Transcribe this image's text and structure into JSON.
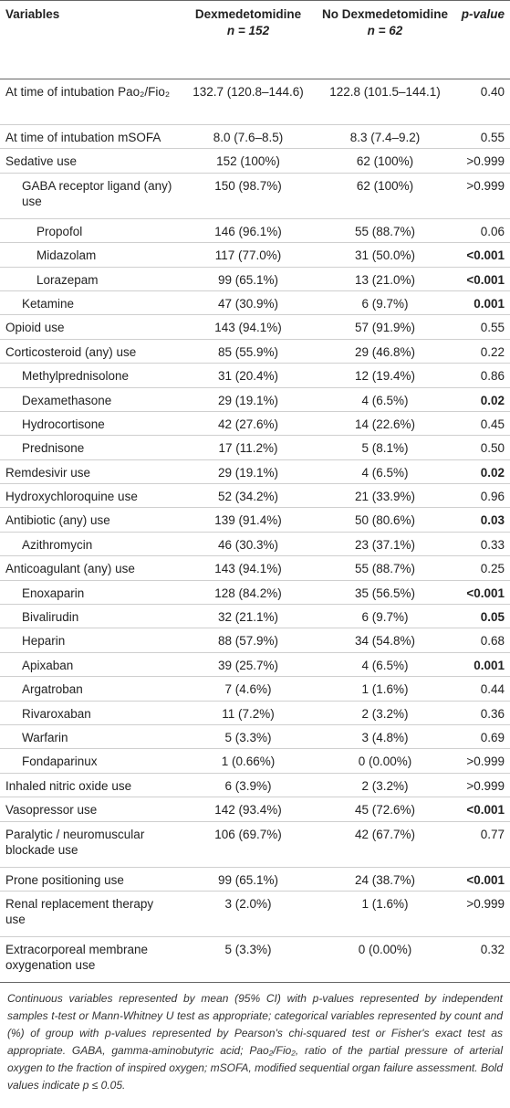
{
  "table": {
    "header": {
      "variables": "Variables",
      "groups": [
        {
          "name": "Dexmedetomidine",
          "n": "n = 152"
        },
        {
          "name": "No Dexmedetomidine",
          "n": "n = 62"
        }
      ],
      "p": "p-value"
    },
    "rows": [
      [
        "At time of intubation Pao₂/Fio₂",
        "132.7 (120.8–144.6)",
        "122.8 (101.5–144.1)",
        "0.40"
      ],
      [
        "At time of intubation mSOFA",
        "8.0 (7.6–8.5)",
        "8.3 (7.4–9.2)",
        "0.55"
      ],
      [
        "Sedative use",
        "152 (100%)",
        "62 (100%)",
        ">0.999"
      ],
      [
        "GABA receptor ligand (any) use",
        "150 (98.7%)",
        "62 (100%)",
        ">0.999"
      ],
      [
        "Propofol",
        "146 (96.1%)",
        "55 (88.7%)",
        "0.06"
      ],
      [
        "Midazolam",
        "117 (77.0%)",
        "31 (50.0%)",
        "<0.001"
      ],
      [
        "Lorazepam",
        "99 (65.1%)",
        "13 (21.0%)",
        "<0.001"
      ],
      [
        "Ketamine",
        "47 (30.9%)",
        "6 (9.7%)",
        "0.001"
      ],
      [
        "Opioid use",
        "143 (94.1%)",
        "57 (91.9%)",
        "0.55"
      ],
      [
        "Corticosteroid (any) use",
        "85 (55.9%)",
        "29 (46.8%)",
        "0.22"
      ],
      [
        "Methylprednisolone",
        "31 (20.4%)",
        "12 (19.4%)",
        "0.86"
      ],
      [
        "Dexamethasone",
        "29 (19.1%)",
        "4 (6.5%)",
        "0.02"
      ],
      [
        "Hydrocortisone",
        "42 (27.6%)",
        "14 (22.6%)",
        "0.45"
      ],
      [
        "Prednisone",
        "17 (11.2%)",
        "5 (8.1%)",
        "0.50"
      ],
      [
        "Remdesivir use",
        "29 (19.1%)",
        "4 (6.5%)",
        "0.02"
      ],
      [
        "Hydroxychloroquine use",
        "52 (34.2%)",
        "21 (33.9%)",
        "0.96"
      ],
      [
        "Antibiotic (any) use",
        "139 (91.4%)",
        "50 (80.6%)",
        "0.03"
      ],
      [
        "Azithromycin",
        "46 (30.3%)",
        "23 (37.1%)",
        "0.33"
      ],
      [
        "Anticoagulant (any) use",
        "143 (94.1%)",
        "55 (88.7%)",
        "0.25"
      ],
      [
        "Enoxaparin",
        "128 (84.2%)",
        "35 (56.5%)",
        "<0.001"
      ],
      [
        "Bivalirudin",
        "32 (21.1%)",
        "6 (9.7%)",
        "0.05"
      ],
      [
        "Heparin",
        "88 (57.9%)",
        "34 (54.8%)",
        "0.68"
      ],
      [
        "Apixaban",
        "39 (25.7%)",
        "4 (6.5%)",
        "0.001"
      ],
      [
        "Argatroban",
        "7 (4.6%)",
        "1 (1.6%)",
        "0.44"
      ],
      [
        "Rivaroxaban",
        "11 (7.2%)",
        "2 (3.2%)",
        "0.36"
      ],
      [
        "Warfarin",
        "5 (3.3%)",
        "3 (4.8%)",
        "0.69"
      ],
      [
        "Fondaparinux",
        "1 (0.66%)",
        "0 (0.00%)",
        ">0.999"
      ],
      [
        "Inhaled nitric oxide use",
        "6 (3.9%)",
        "2 (3.2%)",
        ">0.999"
      ],
      [
        "Vasopressor use",
        "142 (93.4%)",
        "45 (72.6%)",
        "<0.001"
      ],
      [
        "Paralytic / neuromuscular blockade use",
        "106 (69.7%)",
        "42 (67.7%)",
        "0.77"
      ],
      [
        "Prone positioning use",
        "99 (65.1%)",
        "24 (38.7%)",
        "<0.001"
      ],
      [
        "Renal replacement therapy use",
        "3 (2.0%)",
        "1 (1.6%)",
        ">0.999"
      ],
      [
        "Extracorporeal membrane oxygenation use",
        "5 (3.3%)",
        "0 (0.00%)",
        "0.32"
      ]
    ],
    "footnote": "Continuous variables represented by mean (95% CI) with p-values represented by independent samples t-test or Mann-Whitney U test as appropriate; categorical variables represented by count and (%) of group with p-values represented by Pearson's chi-squared test or Fisher's exact test as appropriate. GABA, gamma-aminobutyric acid; Pao₂/Fio₂, ratio of the partial pressure of arterial oxygen to the fraction of inspired oxygen; mSOFA, modified sequential organ failure assessment. Bold values indicate p ≤ 0.05."
  }
}
